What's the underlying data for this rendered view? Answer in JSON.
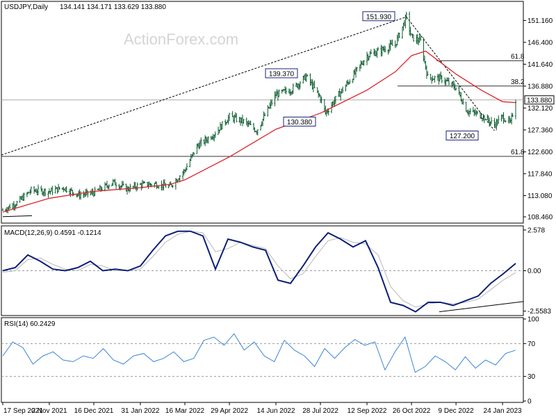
{
  "header": {
    "symbol": "USDJPY,Daily",
    "ohlc": "134.141 134.171 133.629 133.880",
    "watermark": "ActionForex.com"
  },
  "macd_header": "MACD(12,26,9) 0.4591 -0.1214",
  "rsi_header": "RSI(14) 60.2429",
  "colors": {
    "price_bars": "#0a5a2e",
    "ma": "#d8232a",
    "macd": "#0b1e7a",
    "macd_signal": "#b8b8b8",
    "rsi": "#3a86d6",
    "background": "#ffffff"
  },
  "chart_data": [
    {
      "type": "candlestick",
      "panel": "price",
      "title": "USDJPY,Daily",
      "ylim": [
        107.4,
        155.0
      ],
      "yticks": [
        "151.160",
        "146.400",
        "141.640",
        "136.880",
        "132.120",
        "127.360",
        "122.600",
        "117.840",
        "113.080",
        "108.460"
      ],
      "current_price_label": "133.880",
      "xticks": [
        "17 Sep 2021",
        "2 Nov 2021",
        "16 Dec 2021",
        "31 Jan 2022",
        "16 Mar 2022",
        "29 Apr 2022",
        "14 Jun 2022",
        "28 Jul 2022",
        "12 Sep 2022",
        "26 Oct 2022",
        "9 Dec 2022",
        "24 Jan 2023"
      ],
      "annotations": [
        "151.930",
        "139.370",
        "130.380",
        "127.200"
      ],
      "fib_labels": [
        "61.8",
        "38.2",
        "61.8"
      ],
      "levels": [
        142.4,
        136.9,
        133.88,
        121.6
      ],
      "close_series": [
        {
          "x": "17 Sep 2021",
          "y": 109.9
        },
        {
          "x": "1 Oct 2021",
          "y": 111.5
        },
        {
          "x": "15 Oct 2021",
          "y": 114.2
        },
        {
          "x": "2 Nov 2021",
          "y": 114.0
        },
        {
          "x": "16 Nov 2021",
          "y": 114.8
        },
        {
          "x": "1 Dec 2021",
          "y": 113.2
        },
        {
          "x": "16 Dec 2021",
          "y": 113.7
        },
        {
          "x": "4 Jan 2022",
          "y": 116.0
        },
        {
          "x": "18 Jan 2022",
          "y": 114.5
        },
        {
          "x": "31 Jan 2022",
          "y": 115.4
        },
        {
          "x": "14 Feb 2022",
          "y": 115.6
        },
        {
          "x": "1 Mar 2022",
          "y": 115.0
        },
        {
          "x": "16 Mar 2022",
          "y": 118.6
        },
        {
          "x": "28 Mar 2022",
          "y": 123.8
        },
        {
          "x": "14 Apr 2022",
          "y": 126.5
        },
        {
          "x": "29 Apr 2022",
          "y": 130.2
        },
        {
          "x": "13 May 2022",
          "y": 129.2
        },
        {
          "x": "26 May 2022",
          "y": 127.2
        },
        {
          "x": "14 Jun 2022",
          "y": 135.0
        },
        {
          "x": "30 Jun 2022",
          "y": 136.2
        },
        {
          "x": "14 Jul 2022",
          "y": 139.0
        },
        {
          "x": "28 Jul 2022",
          "y": 134.3
        },
        {
          "x": "2 Aug 2022",
          "y": 131.0
        },
        {
          "x": "15 Aug 2022",
          "y": 135.0
        },
        {
          "x": "29 Aug 2022",
          "y": 139.0
        },
        {
          "x": "12 Sep 2022",
          "y": 143.5
        },
        {
          "x": "26 Sep 2022",
          "y": 144.7
        },
        {
          "x": "10 Oct 2022",
          "y": 146.0
        },
        {
          "x": "21 Oct 2022",
          "y": 151.9
        },
        {
          "x": "26 Oct 2022",
          "y": 147.5
        },
        {
          "x": "4 Nov 2022",
          "y": 146.6
        },
        {
          "x": "11 Nov 2022",
          "y": 138.8
        },
        {
          "x": "25 Nov 2022",
          "y": 138.5
        },
        {
          "x": "9 Dec 2022",
          "y": 136.5
        },
        {
          "x": "20 Dec 2022",
          "y": 131.5
        },
        {
          "x": "3 Jan 2023",
          "y": 130.5
        },
        {
          "x": "16 Jan 2023",
          "y": 128.5
        },
        {
          "x": "24 Jan 2023",
          "y": 130.2
        },
        {
          "x": "1 Feb 2023",
          "y": 128.8
        },
        {
          "x": "6 Feb 2023",
          "y": 133.88
        }
      ],
      "moving_average": [
        {
          "x": "17 Sep 2021",
          "y": 109.5
        },
        {
          "x": "2 Nov 2021",
          "y": 112.5
        },
        {
          "x": "16 Dec 2021",
          "y": 114.0
        },
        {
          "x": "31 Jan 2022",
          "y": 114.8
        },
        {
          "x": "1 Mar 2022",
          "y": 115.5
        },
        {
          "x": "16 Mar 2022",
          "y": 116.5
        },
        {
          "x": "29 Apr 2022",
          "y": 121.5
        },
        {
          "x": "14 Jun 2022",
          "y": 127.5
        },
        {
          "x": "28 Jul 2022",
          "y": 131.0
        },
        {
          "x": "12 Sep 2022",
          "y": 136.0
        },
        {
          "x": "10 Oct 2022",
          "y": 140.0
        },
        {
          "x": "26 Oct 2022",
          "y": 143.5
        },
        {
          "x": "9 Nov 2022",
          "y": 144.5
        },
        {
          "x": "9 Dec 2022",
          "y": 139.5
        },
        {
          "x": "3 Jan 2023",
          "y": 136.0
        },
        {
          "x": "24 Jan 2023",
          "y": 133.5
        },
        {
          "x": "6 Feb 2023",
          "y": 133.3
        }
      ]
    },
    {
      "type": "line",
      "panel": "macd",
      "title": "MACD(12,26,9) 0.4591 -0.1214",
      "ylim": [
        -2.75,
        2.75
      ],
      "yticks": [
        "2.578",
        "0.00",
        "-2.5583"
      ],
      "series": [
        {
          "name": "MACD",
          "values": [
            0.0,
            0.2,
            1.0,
            0.6,
            0.1,
            0.0,
            0.2,
            0.6,
            0.0,
            0.1,
            0.0,
            0.3,
            1.3,
            2.2,
            2.5,
            2.5,
            2.2,
            0.1,
            2.0,
            1.8,
            1.5,
            1.3,
            -0.6,
            -0.8,
            0.3,
            1.5,
            2.4,
            2.0,
            1.5,
            1.9,
            0.2,
            -2.0,
            -2.2,
            -2.6,
            -2.0,
            -2.0,
            -2.2,
            -1.9,
            -1.6,
            -0.8,
            -0.2,
            0.46
          ]
        },
        {
          "name": "Signal",
          "values": [
            -0.1,
            0.0,
            0.7,
            0.8,
            0.4,
            0.1,
            0.0,
            0.4,
            0.3,
            0.0,
            0.0,
            0.1,
            0.9,
            1.8,
            2.3,
            2.5,
            2.4,
            1.2,
            1.4,
            1.8,
            1.6,
            1.4,
            0.3,
            -0.5,
            -0.2,
            0.9,
            1.9,
            2.1,
            1.8,
            1.7,
            1.0,
            -1.0,
            -1.9,
            -2.3,
            -2.1,
            -2.0,
            -2.1,
            -2.0,
            -1.8,
            -1.2,
            -0.6,
            -0.12
          ]
        }
      ]
    },
    {
      "type": "line",
      "panel": "rsi",
      "title": "RSI(14) 60.2429",
      "ylim": [
        0,
        100
      ],
      "yticks": [
        "100",
        "70",
        "30",
        "0"
      ],
      "levels": [
        70,
        30
      ],
      "series": [
        {
          "name": "RSI(14)",
          "values": [
            55,
            72,
            65,
            45,
            55,
            60,
            50,
            48,
            55,
            52,
            64,
            50,
            45,
            55,
            58,
            48,
            52,
            60,
            48,
            52,
            74,
            78,
            68,
            82,
            62,
            72,
            55,
            48,
            74,
            62,
            55,
            42,
            64,
            52,
            65,
            75,
            68,
            72,
            38,
            60,
            78,
            35,
            42,
            55,
            48,
            38,
            54,
            40,
            50,
            44,
            58,
            62
          ]
        }
      ]
    }
  ]
}
